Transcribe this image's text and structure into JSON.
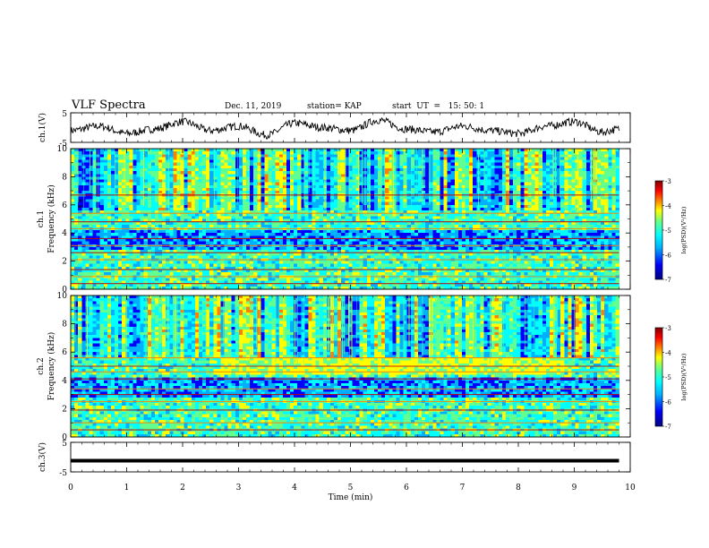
{
  "header": {
    "title": "VLF Spectra",
    "date": "Dec. 11, 2019",
    "station": "station= KAP",
    "start": "start  UT  =   15: 50: 1"
  },
  "chart_data": [
    {
      "type": "line",
      "panel": "ch1-waveform",
      "ylabel": "ch.1(V)",
      "ylim": [
        -5,
        5
      ],
      "yticks": [
        "5",
        "-5"
      ],
      "xlim": [
        0,
        10
      ],
      "series": [
        {
          "x": [
            0,
            0.5,
            1,
            1.5,
            2,
            2.5,
            3,
            3.5,
            4,
            4.5,
            5,
            5.5,
            6,
            6.5,
            7,
            7.5,
            8,
            8.5,
            9,
            9.5,
            9.8
          ],
          "values": [
            -1,
            0.5,
            -2,
            -0.5,
            2,
            -1,
            0.5,
            -2.5,
            1.5,
            0,
            -1,
            2.5,
            -0.5,
            -1.5,
            0.5,
            -1,
            -2,
            0.5,
            2,
            -1.5,
            -0.5
          ]
        }
      ]
    },
    {
      "type": "heatmap",
      "panel": "ch1-spectrogram",
      "ylabel": "ch.1\nFrequency  (kHz)",
      "ylim": [
        0,
        10
      ],
      "yticks": [
        "0",
        "2",
        "4",
        "6",
        "8",
        "10"
      ],
      "xlim": [
        0,
        9.8
      ],
      "colorbar": {
        "label": "log(PSD)(V²/Hz)",
        "range": [
          -7,
          -3
        ],
        "ticks": [
          "-3",
          "-4",
          "-5",
          "-6",
          "-7"
        ]
      },
      "bands_khz": [
        0.4,
        0.9,
        1.4,
        2.1,
        2.6,
        3.1,
        3.6,
        4.3,
        4.8,
        5.4,
        6.7
      ]
    },
    {
      "type": "heatmap",
      "panel": "ch2-spectrogram",
      "ylabel": "ch.2\nFrequency  (kHz)",
      "ylim": [
        0,
        10
      ],
      "yticks": [
        "0",
        "2",
        "4",
        "6",
        "8",
        "10"
      ],
      "xlim": [
        0,
        9.8
      ],
      "colorbar": {
        "label": "log(PSD)(V²/Hz)",
        "range": [
          -7,
          -3
        ],
        "ticks": [
          "-3",
          "-4",
          "-5",
          "-6",
          "-7"
        ]
      },
      "bands_khz": [
        0.5,
        1.0,
        1.9,
        2.5,
        3.0,
        3.4,
        4.1,
        4.6,
        5.0,
        5.6
      ]
    },
    {
      "type": "line",
      "panel": "ch3-level",
      "ylabel": "ch.3(V)",
      "ylim": [
        -5,
        5
      ],
      "yticks": [
        "5",
        "-5"
      ],
      "xlim": [
        0,
        10
      ],
      "series": [
        {
          "x": [
            0,
            9.8
          ],
          "values": [
            -1.2,
            -1.2
          ]
        }
      ]
    }
  ],
  "xaxis": {
    "label": "Time  (min)",
    "ticks": [
      "0",
      "1",
      "2",
      "3",
      "4",
      "5",
      "6",
      "7",
      "8",
      "9",
      "10"
    ]
  },
  "colors": {
    "colormap": [
      "#00007f",
      "#0000ff",
      "#00b0ff",
      "#00ffff",
      "#60ff90",
      "#ffff00",
      "#ff8000",
      "#ff0000",
      "#800000"
    ],
    "line": "#000000"
  }
}
